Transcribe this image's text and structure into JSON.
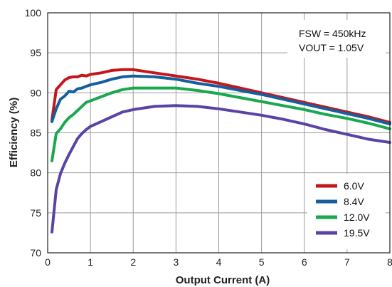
{
  "chart_data": {
    "type": "line",
    "title": "",
    "xlabel": "Output Current (A)",
    "ylabel": "Efficiency (%)",
    "xlim": [
      0,
      8
    ],
    "ylim": [
      70,
      100
    ],
    "xticks": [
      0,
      1,
      2,
      3,
      4,
      5,
      6,
      7,
      8
    ],
    "yticks": [
      70,
      75,
      80,
      85,
      90,
      95,
      100
    ],
    "grid": true,
    "legend_position": "bottom-right",
    "annotations": [
      "FSW = 450kHz",
      "VOUT = 1.05V"
    ],
    "series": [
      {
        "name": "6.0V",
        "color": "#c4161c",
        "x": [
          0.1,
          0.2,
          0.3,
          0.4,
          0.5,
          0.6,
          0.7,
          0.8,
          0.9,
          1.0,
          1.25,
          1.5,
          1.75,
          2.0,
          2.5,
          3.0,
          3.5,
          4.0,
          4.5,
          5.0,
          5.5,
          6.0,
          6.5,
          7.0,
          7.5,
          8.0
        ],
        "y": [
          86.6,
          90.4,
          91.0,
          91.6,
          91.9,
          92.0,
          92.0,
          92.2,
          92.1,
          92.3,
          92.5,
          92.8,
          92.9,
          92.9,
          92.5,
          92.1,
          91.7,
          91.2,
          90.6,
          90.0,
          89.4,
          88.8,
          88.2,
          87.6,
          87.0,
          86.3
        ]
      },
      {
        "name": "8.4V",
        "color": "#135fa0",
        "x": [
          0.1,
          0.2,
          0.3,
          0.4,
          0.5,
          0.6,
          0.7,
          0.8,
          0.9,
          1.0,
          1.25,
          1.5,
          1.75,
          2.0,
          2.5,
          3.0,
          3.5,
          4.0,
          4.5,
          5.0,
          5.5,
          6.0,
          6.5,
          7.0,
          7.5,
          8.0
        ],
        "y": [
          86.4,
          88.0,
          89.2,
          89.6,
          90.2,
          90.1,
          90.5,
          90.6,
          90.8,
          91.0,
          91.3,
          91.7,
          92.0,
          92.1,
          92.0,
          91.7,
          91.2,
          90.8,
          90.3,
          89.8,
          89.2,
          88.6,
          88.0,
          87.4,
          86.8,
          86.1
        ]
      },
      {
        "name": "12.0V",
        "color": "#1aa84f",
        "x": [
          0.1,
          0.2,
          0.3,
          0.4,
          0.5,
          0.6,
          0.7,
          0.8,
          0.9,
          1.0,
          1.25,
          1.5,
          1.75,
          2.0,
          2.5,
          3.0,
          3.5,
          4.0,
          4.5,
          5.0,
          5.5,
          6.0,
          6.5,
          7.0,
          7.5,
          8.0
        ],
        "y": [
          81.5,
          84.9,
          85.5,
          86.3,
          86.9,
          87.3,
          87.8,
          88.3,
          88.8,
          89.0,
          89.5,
          90.0,
          90.4,
          90.6,
          90.6,
          90.6,
          90.3,
          89.9,
          89.4,
          88.9,
          88.4,
          87.9,
          87.3,
          86.8,
          86.2,
          85.5
        ]
      },
      {
        "name": "19.5V",
        "color": "#5b43a6",
        "x": [
          0.1,
          0.2,
          0.3,
          0.4,
          0.5,
          0.6,
          0.7,
          0.8,
          0.9,
          1.0,
          1.25,
          1.5,
          1.75,
          2.0,
          2.5,
          3.0,
          3.5,
          4.0,
          4.5,
          5.0,
          5.5,
          6.0,
          6.5,
          7.0,
          7.5,
          8.0
        ],
        "y": [
          72.6,
          77.9,
          79.9,
          81.2,
          82.3,
          83.3,
          84.3,
          84.9,
          85.4,
          85.8,
          86.4,
          87.0,
          87.6,
          87.9,
          88.3,
          88.4,
          88.3,
          88.0,
          87.6,
          87.2,
          86.7,
          86.1,
          85.4,
          84.8,
          84.2,
          83.8
        ]
      }
    ]
  }
}
